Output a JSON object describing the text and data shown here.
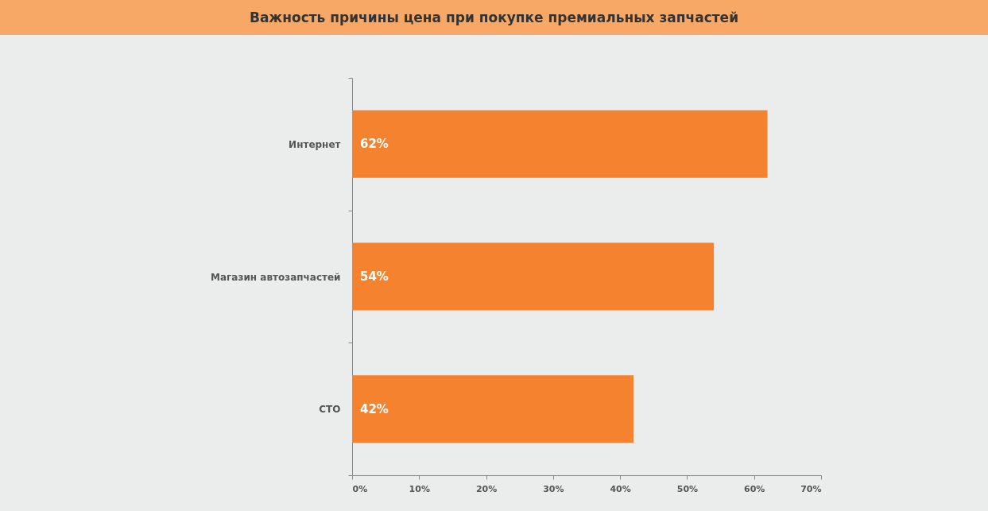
{
  "chart_data": {
    "type": "bar",
    "orientation": "horizontal",
    "title": "Важность причины цена при покупке премиальных запчастей",
    "categories": [
      "Интернет",
      "Магазин автозапчастей",
      "СТО"
    ],
    "values": [
      62,
      54,
      42
    ],
    "color": "#f5822e",
    "value_labels": [
      "62%",
      "54%",
      "42%"
    ],
    "xlim": [
      0,
      70
    ],
    "xticks": [
      {
        "value": 0,
        "label": "0%"
      },
      {
        "value": 10,
        "label": "10%"
      },
      {
        "value": 20,
        "label": "20%"
      },
      {
        "value": 30,
        "label": "30%"
      },
      {
        "value": 40,
        "label": "40%"
      },
      {
        "value": 50,
        "label": "50%"
      },
      {
        "value": 60,
        "label": "60%"
      },
      {
        "value": 70,
        "label": "70%"
      }
    ],
    "grid": false
  }
}
